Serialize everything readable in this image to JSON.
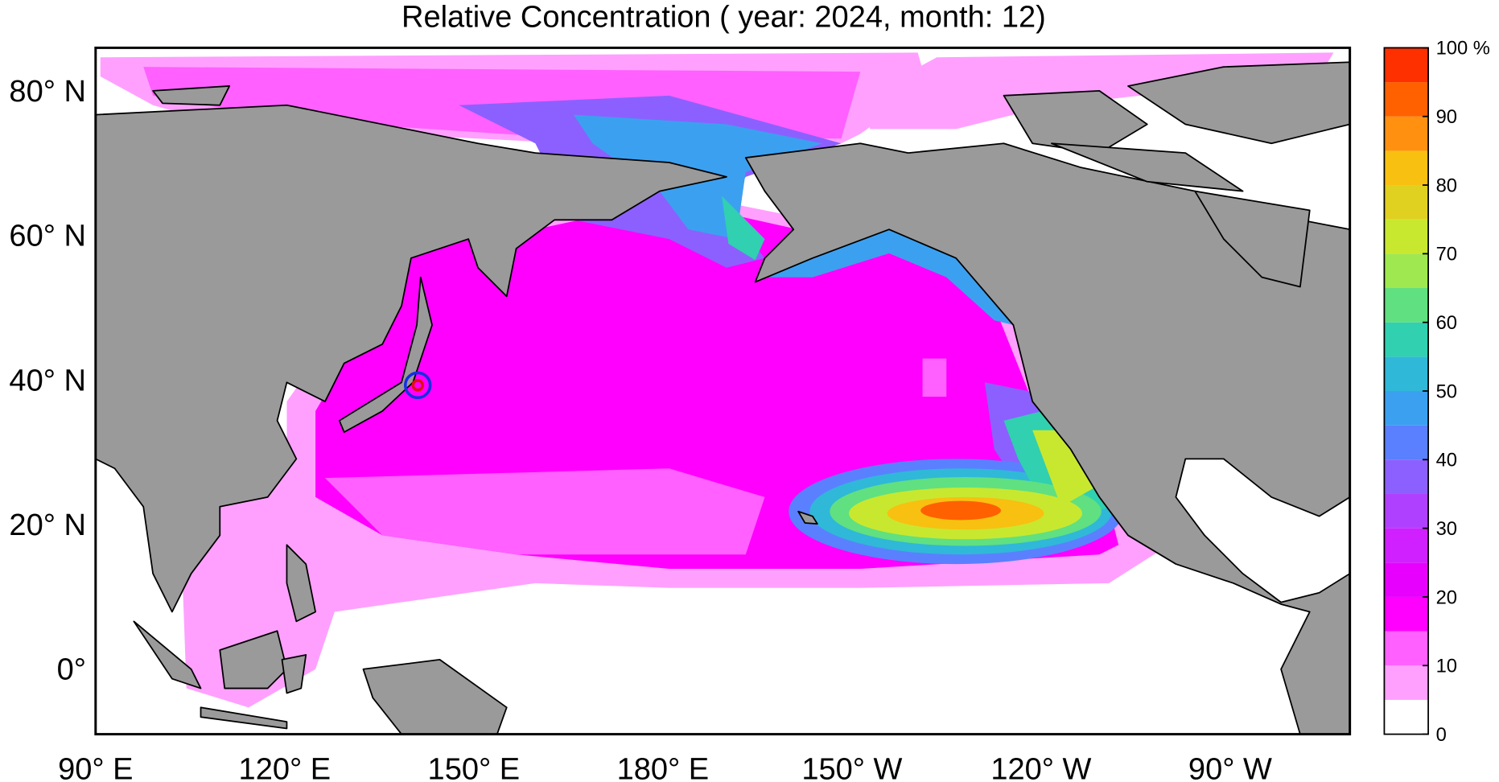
{
  "title": "Relative Concentration ( year: 2024, month: 12)",
  "map": {
    "lat_labels": [
      "80° N",
      "60° N",
      "40° N",
      "20° N",
      "0°"
    ],
    "lon_labels": [
      "90° E",
      "120° E",
      "150° E",
      "180° E",
      "150° W",
      "120° W",
      "90° W"
    ]
  },
  "colorbar": {
    "range": [
      0,
      100
    ],
    "levels": [
      0,
      5,
      10,
      15,
      20,
      25,
      30,
      35,
      40,
      45,
      50,
      55,
      60,
      65,
      70,
      75,
      80,
      85,
      90,
      95,
      100
    ],
    "colors": [
      "#ffffff",
      "#ffa0ff",
      "#ff60ff",
      "#ff00ff",
      "#e800ff",
      "#d020ff",
      "#b040ff",
      "#8c60ff",
      "#5a80ff",
      "#3ca0f0",
      "#30b8d8",
      "#30d0b0",
      "#60e080",
      "#a0e850",
      "#c8e830",
      "#e0d020",
      "#f8c010",
      "#ff9010",
      "#ff6000",
      "#ff3000"
    ],
    "ticks": [
      0,
      10,
      20,
      30,
      40,
      50,
      60,
      70,
      80,
      90,
      {
        "value": 100,
        "label": "100 %"
      }
    ]
  }
}
